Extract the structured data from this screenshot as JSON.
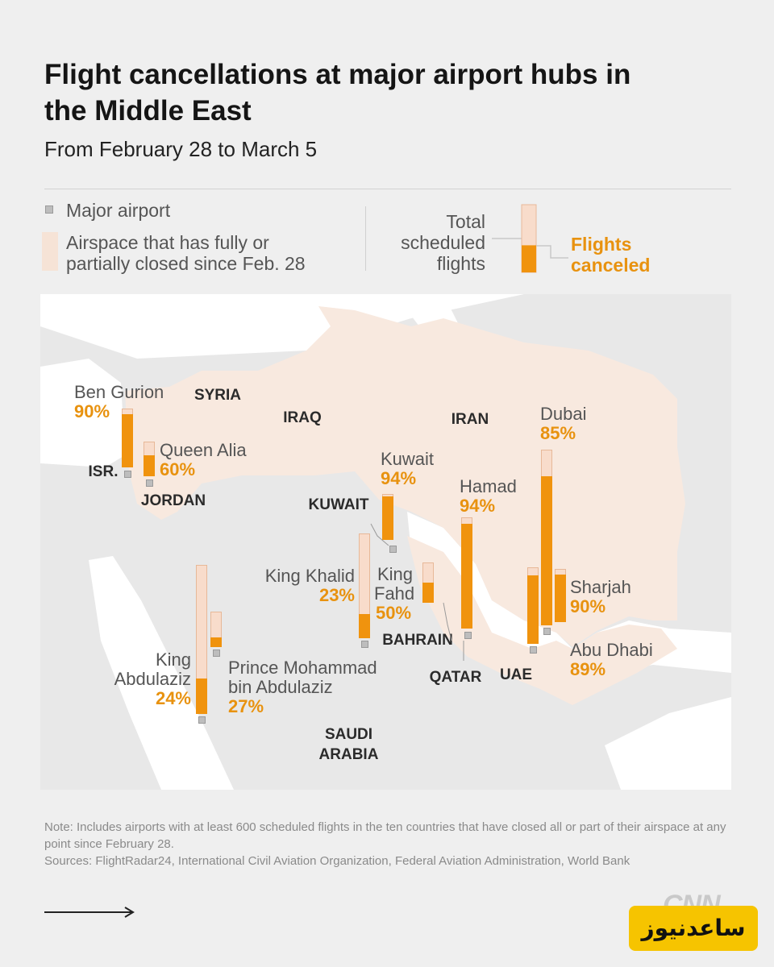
{
  "title": "Flight cancellations at major airport hubs in the Middle East",
  "subtitle": "From February 28 to March 5",
  "legend": {
    "major_airport": "Major airport",
    "airspace_line1": "Airspace that has fully or",
    "airspace_line2": "partially closed since Feb. 28",
    "total_line1": "Total",
    "total_line2": "scheduled",
    "total_line3": "flights",
    "canceled_line1": "Flights",
    "canceled_line2": "canceled",
    "example_canceled_share": 0.4
  },
  "colors": {
    "canceled": "#f0930e",
    "total": "#f8dccb",
    "airspace": "#f8e9df",
    "land": "#e6e6e6",
    "percent_text": "#e8920f"
  },
  "countries": {
    "syria": "SYRIA",
    "iraq": "IRAQ",
    "iran": "IRAN",
    "isr": "ISR.",
    "jordan": "JORDAN",
    "kuwait": "KUWAIT",
    "bahrain": "BAHRAIN",
    "qatar": "QATAR",
    "uae": "UAE",
    "saudi1": "SAUDI",
    "saudi2": "ARABIA"
  },
  "airports": {
    "ben_gurion": {
      "name": "Ben Gurion",
      "pct": "90%",
      "canceled_share": 0.9
    },
    "queen_alia": {
      "name": "Queen Alia",
      "pct": "60%",
      "canceled_share": 0.6
    },
    "kuwait": {
      "name": "Kuwait",
      "pct": "94%",
      "canceled_share": 0.94
    },
    "hamad": {
      "name": "Hamad",
      "pct": "94%",
      "canceled_share": 0.94
    },
    "dubai": {
      "name": "Dubai",
      "pct": "85%",
      "canceled_share": 0.85
    },
    "sharjah": {
      "name": "Sharjah",
      "pct": "90%",
      "canceled_share": 0.9
    },
    "abu_dhabi": {
      "name": "Abu Dhabi",
      "pct": "89%",
      "canceled_share": 0.89
    },
    "king_fahd": {
      "name1": "King",
      "name2": "Fahd",
      "pct": "50%",
      "canceled_share": 0.5
    },
    "king_khalid": {
      "name": "King Khalid",
      "pct": "23%",
      "canceled_share": 0.23
    },
    "king_abdulaziz": {
      "name1": "King",
      "name2": "Abdulaziz",
      "pct": "24%",
      "canceled_share": 0.24
    },
    "prince_mohammad": {
      "name1": "Prince Mohammad",
      "name2": "bin Abdulaziz",
      "pct": "27%",
      "canceled_share": 0.27
    }
  },
  "note": "Note: Includes airports with at least 600 scheduled flights in the ten countries that have closed all or part of their airspace at any point since February 28.",
  "sources": "Sources: FlightRadar24, International Civil Aviation Organization, Federal Aviation Administration, World Bank",
  "logo": "CNN",
  "watermark": "ساعدنیوز"
}
